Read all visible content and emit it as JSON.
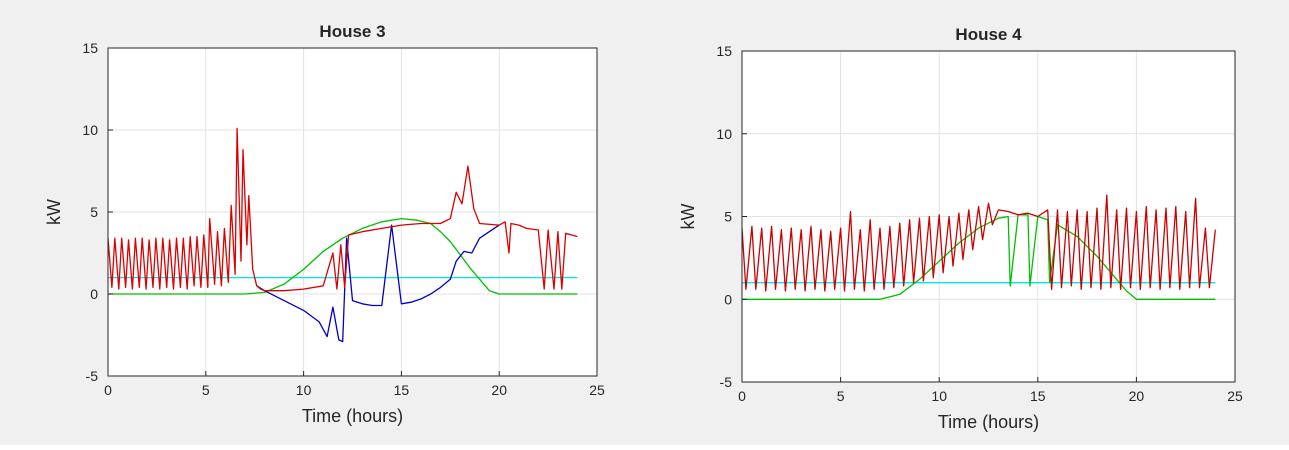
{
  "figure": {
    "background": "#f0f0f0"
  },
  "chart_data": [
    {
      "type": "line",
      "title": "House 3",
      "xlabel": "Time (hours)",
      "ylabel": "kW",
      "xlim": [
        0,
        25
      ],
      "ylim": [
        -5,
        15
      ],
      "xticks": [
        "0",
        "5",
        "10",
        "15",
        "20",
        "25"
      ],
      "yticks": [
        "-5",
        "0",
        "5",
        "10",
        "15"
      ],
      "grid": true,
      "series": [
        {
          "color": "#00e5ee",
          "x": [
            0,
            24
          ],
          "y": [
            1.0,
            1.0
          ]
        },
        {
          "color": "#00c000",
          "x": [
            0,
            7,
            8,
            9,
            10,
            11,
            12,
            13,
            14,
            15,
            15.8,
            16.5,
            17,
            17.5,
            18,
            18.5,
            19,
            19.5,
            20,
            24
          ],
          "y": [
            0,
            0,
            0.1,
            0.6,
            1.5,
            2.6,
            3.4,
            4.0,
            4.4,
            4.6,
            4.5,
            4.3,
            3.8,
            3.2,
            2.4,
            1.6,
            0.9,
            0.2,
            0,
            0
          ]
        },
        {
          "color": "#0000cc",
          "x": [
            7.6,
            8,
            9,
            10,
            10.8,
            11.2,
            11.5,
            11.8,
            12,
            12.2,
            12.5,
            13,
            13.5,
            14,
            14.5,
            15,
            15.5,
            16,
            16.5,
            17,
            17.5,
            17.8,
            18.2,
            18.6,
            19,
            20
          ],
          "y": [
            0.5,
            0.2,
            -0.4,
            -1.0,
            -1.7,
            -2.6,
            -0.8,
            -2.8,
            -2.9,
            3.4,
            -0.4,
            -0.6,
            -0.7,
            -0.7,
            4.2,
            -0.6,
            -0.5,
            -0.3,
            0,
            0.4,
            0.9,
            2.0,
            2.6,
            2.5,
            3.4,
            4.2
          ]
        },
        {
          "color": "#dd0000",
          "x": [
            0,
            0.2,
            0.35,
            0.55,
            0.7,
            0.9,
            1.05,
            1.25,
            1.4,
            1.6,
            1.75,
            1.95,
            2.1,
            2.3,
            2.45,
            2.65,
            2.8,
            3.0,
            3.15,
            3.35,
            3.5,
            3.7,
            3.85,
            4.05,
            4.2,
            4.4,
            4.55,
            4.75,
            4.9,
            5.1,
            5.2,
            5.45,
            5.6,
            5.8,
            5.95,
            6.15,
            6.3,
            6.5,
            6.6,
            6.8,
            6.9,
            7.1,
            7.2,
            7.4,
            7.6,
            7.8,
            8,
            9,
            10,
            11,
            11.5,
            11.7,
            11.9,
            12.1,
            12.3,
            13,
            14,
            15,
            16,
            17,
            17.5,
            17.8,
            18.1,
            18.4,
            18.7,
            19,
            20,
            20.3,
            20.5,
            20.6,
            21,
            21.4,
            22,
            22.3,
            22.5,
            22.8,
            23,
            23.2,
            23.4,
            24
          ],
          "y": [
            3.4,
            0.4,
            3.4,
            0.3,
            3.4,
            0.4,
            3.3,
            0.3,
            3.4,
            0.4,
            3.4,
            0.3,
            3.3,
            0.4,
            3.4,
            0.3,
            3.4,
            0.4,
            3.3,
            0.3,
            3.4,
            0.4,
            3.4,
            0.3,
            3.5,
            0.5,
            3.5,
            0.4,
            3.6,
            0.4,
            4.6,
            0.6,
            3.8,
            0.5,
            4.0,
            0.7,
            5.4,
            1.2,
            10.1,
            2.0,
            8.8,
            3.0,
            6.0,
            1.5,
            0.5,
            0.3,
            0.2,
            0.2,
            0.3,
            0.5,
            2.5,
            0.3,
            3.0,
            0.4,
            3.6,
            3.8,
            4.0,
            4.2,
            4.3,
            4.3,
            4.6,
            6.2,
            5.5,
            7.8,
            5.2,
            4.3,
            4.2,
            4.4,
            2.5,
            4.3,
            4.2,
            4.0,
            3.9,
            0.3,
            3.9,
            0.3,
            3.8,
            0.3,
            3.7,
            3.5
          ]
        }
      ]
    },
    {
      "type": "line",
      "title": "House 4",
      "xlabel": "Time (hours)",
      "ylabel": "kW",
      "xlim": [
        0,
        25
      ],
      "ylim": [
        -5,
        15
      ],
      "xticks": [
        "0",
        "5",
        "10",
        "15",
        "20",
        "25"
      ],
      "yticks": [
        "-5",
        "0",
        "5",
        "10",
        "15"
      ],
      "grid": true,
      "series": [
        {
          "color": "#00e5ee",
          "x": [
            0,
            24
          ],
          "y": [
            1.0,
            1.0
          ]
        },
        {
          "color": "#00c000",
          "x": [
            0,
            7,
            8,
            9,
            10,
            11,
            12,
            13,
            13.5,
            13.6,
            14,
            14.5,
            14.6,
            15,
            15.5,
            15.6,
            16,
            17,
            18,
            19,
            19.5,
            20,
            24
          ],
          "y": [
            0,
            0,
            0.3,
            1.2,
            2.3,
            3.4,
            4.3,
            4.9,
            5.0,
            0.8,
            5.1,
            5.1,
            0.8,
            5.0,
            4.8,
            1.0,
            4.5,
            3.8,
            2.6,
            1.2,
            0.5,
            0,
            0
          ]
        },
        {
          "color": "#cc0000",
          "x": [
            0,
            0.2,
            0.5,
            0.7,
            1.0,
            1.2,
            1.5,
            1.7,
            2.0,
            2.2,
            2.5,
            2.7,
            3.0,
            3.2,
            3.5,
            3.7,
            4.0,
            4.2,
            4.5,
            4.7,
            5.0,
            5.2,
            5.5,
            5.7,
            6.0,
            6.2,
            6.5,
            6.7,
            7.0,
            7.2,
            7.5,
            7.7,
            8.0,
            8.2,
            8.5,
            8.7,
            9.0,
            9.2,
            9.5,
            9.7,
            10.0,
            10.2,
            10.5,
            10.7,
            11.0,
            11.2,
            11.5,
            11.7,
            12.0,
            12.2,
            12.5,
            12.7,
            13.0,
            13.5,
            14.0,
            14.5,
            15.0,
            15.5,
            15.7,
            16.0,
            16.2,
            16.5,
            16.7,
            17.0,
            17.2,
            17.5,
            17.7,
            18.0,
            18.2,
            18.5,
            18.7,
            19.0,
            19.2,
            19.5,
            19.7,
            20.0,
            20.2,
            20.5,
            20.7,
            21.0,
            21.2,
            21.5,
            21.7,
            22.0,
            22.2,
            22.5,
            22.7,
            23.0,
            23.2,
            23.5,
            23.7,
            24.0
          ],
          "y": [
            4.3,
            0.6,
            4.4,
            0.6,
            4.3,
            0.5,
            4.4,
            0.6,
            4.2,
            0.5,
            4.3,
            0.6,
            4.2,
            0.5,
            4.4,
            0.6,
            4.2,
            0.5,
            4.1,
            0.6,
            4.3,
            0.5,
            5.3,
            0.6,
            4.2,
            0.5,
            4.8,
            0.6,
            4.3,
            0.6,
            4.4,
            0.7,
            4.6,
            0.8,
            4.8,
            1.0,
            4.9,
            1.1,
            5.0,
            1.3,
            5.1,
            1.6,
            5.0,
            2.0,
            5.2,
            2.4,
            5.4,
            3.0,
            5.6,
            3.6,
            5.8,
            4.5,
            5.4,
            5.3,
            5.1,
            5.2,
            5.0,
            5.4,
            0.6,
            5.4,
            0.7,
            5.3,
            0.8,
            5.4,
            0.6,
            5.3,
            0.7,
            5.5,
            0.6,
            6.3,
            0.7,
            5.4,
            0.6,
            5.5,
            0.7,
            5.3,
            0.6,
            5.6,
            0.7,
            5.4,
            0.6,
            5.5,
            0.7,
            5.6,
            0.6,
            5.3,
            0.7,
            6.1,
            0.7,
            4.3,
            0.7,
            4.2
          ]
        }
      ]
    }
  ]
}
